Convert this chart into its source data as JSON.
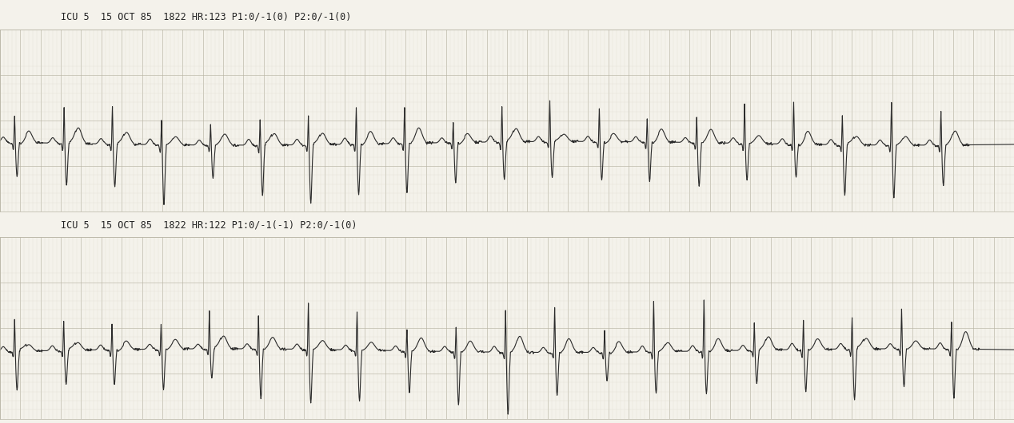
{
  "bg_color": "#f4f2eb",
  "grid_color_minor": "#d8d5c8",
  "grid_color_major": "#b8b5a5",
  "line_color": "#2a2a2a",
  "header1": "ICU 5  15 OCT 85  1822 HR:123 P1:0/-1(0) P2:0/-1(0)",
  "header2": "ICU 5  15 OCT 85  1822 HR:122 P1:0/-1(-1) P2:0/-1(0)",
  "text_color": "#222222",
  "text_size": 8.5,
  "hr1": 123,
  "hr2": 122,
  "separator_color": "#e0ddd0",
  "white_strip_color": "#f8f6f0"
}
